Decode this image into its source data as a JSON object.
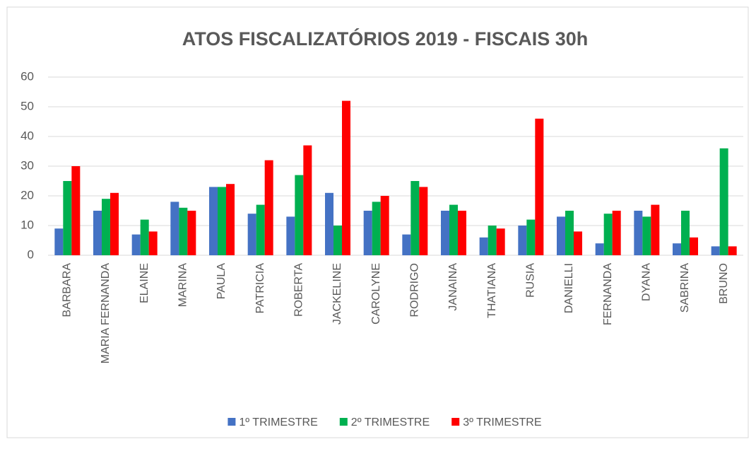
{
  "chart_data": {
    "type": "bar",
    "title": "ATOS FISCALIZATÓRIOS 2019 - FISCAIS 30h",
    "categories": [
      "BARBARA",
      "MARIA FERNANDA",
      "ELAINE",
      "MARINA",
      "PAULA",
      "PATRICIA",
      "ROBERTA",
      "JACKELINE",
      "CAROLYNE",
      "RODRIGO",
      "JANAINA",
      "THATIANA",
      "RUSIA",
      "DANIELLI",
      "FERNANDA",
      "DYANA",
      "SABRINA",
      "BRUNO"
    ],
    "series": [
      {
        "name": "1º TRIMESTRE",
        "color": "#4472c4",
        "values": [
          9,
          15,
          7,
          18,
          23,
          14,
          13,
          21,
          15,
          7,
          15,
          6,
          10,
          13,
          4,
          15,
          4,
          3
        ]
      },
      {
        "name": "2º TRIMESTRE",
        "color": "#00b050",
        "values": [
          25,
          19,
          12,
          16,
          23,
          17,
          27,
          10,
          18,
          25,
          17,
          10,
          12,
          15,
          14,
          13,
          15,
          36
        ]
      },
      {
        "name": "3º TRIMESTRE",
        "color": "#ff0000",
        "values": [
          30,
          21,
          8,
          15,
          24,
          32,
          37,
          52,
          20,
          23,
          15,
          9,
          46,
          8,
          15,
          17,
          6,
          3
        ]
      }
    ],
    "ylim": [
      0,
      60
    ],
    "yticks": [
      0,
      10,
      20,
      30,
      40,
      50,
      60
    ],
    "grid": true,
    "legend": "bottom"
  }
}
